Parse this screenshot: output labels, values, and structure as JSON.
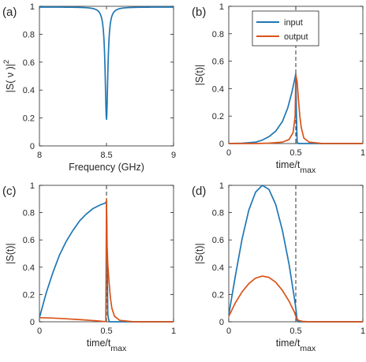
{
  "colors": {
    "input": "#1f77b4",
    "output": "#d95319",
    "marker": "#333333",
    "axes": "#262626"
  },
  "legend": {
    "entries": [
      "input",
      "output"
    ],
    "placement": "top-left",
    "panel": "b"
  },
  "chart_data": [
    {
      "panel": "(a)",
      "type": "line",
      "xlabel": "Frequency (GHz)",
      "ylabel": "|S( ν )|",
      "ylabel_sup": "2",
      "xlim": [
        8,
        9
      ],
      "ylim": [
        0,
        1
      ],
      "xticks": [
        "8",
        "8.5",
        "9"
      ],
      "yticks": [
        "0",
        "0.2",
        "0.4",
        "0.6",
        "0.8",
        "1"
      ],
      "series": [
        {
          "color_key": "input",
          "style": "lorentzian-dip",
          "center": 8.5,
          "min": 0.19,
          "baseline": 0.995,
          "halfwidth": 0.012
        }
      ]
    },
    {
      "panel": "(b)",
      "type": "line",
      "xlabel": "time/t",
      "xlabel_sub": "max",
      "ylabel": "|S(t)|",
      "xlim": [
        0,
        1
      ],
      "ylim": [
        0,
        1
      ],
      "xticks": [
        "0",
        "0.5",
        "1"
      ],
      "yticks": [
        "0",
        "0.2",
        "0.4",
        "0.6",
        "0.8",
        "1"
      ],
      "vline": 0.5,
      "series": [
        {
          "name": "input",
          "color_key": "input",
          "x": [
            0,
            0.1,
            0.2,
            0.25,
            0.3,
            0.35,
            0.4,
            0.44,
            0.47,
            0.49,
            0.5,
            0.505,
            0.51,
            0.52,
            0.6,
            1
          ],
          "y": [
            0,
            0.002,
            0.01,
            0.025,
            0.05,
            0.09,
            0.16,
            0.26,
            0.37,
            0.46,
            0.51,
            0.2,
            0.01,
            0,
            0,
            0
          ]
        },
        {
          "name": "output",
          "color_key": "output",
          "x": [
            0,
            0.2,
            0.3,
            0.4,
            0.45,
            0.48,
            0.495,
            0.5,
            0.51,
            0.52,
            0.53,
            0.54,
            0.56,
            0.6,
            0.7,
            1
          ],
          "y": [
            0,
            0,
            0.003,
            0.01,
            0.03,
            0.08,
            0.2,
            0.5,
            0.45,
            0.32,
            0.2,
            0.12,
            0.04,
            0.01,
            0,
            0
          ]
        }
      ]
    },
    {
      "panel": "(c)",
      "type": "line",
      "xlabel": "time/t",
      "xlabel_sub": "max",
      "ylabel": "|S(t)|",
      "xlim": [
        0,
        1
      ],
      "ylim": [
        0,
        1
      ],
      "xticks": [
        "0",
        "0.5",
        "1"
      ],
      "yticks": [
        "0",
        "0.2",
        "0.4",
        "0.6",
        "0.8",
        "1"
      ],
      "vline": 0.5,
      "series": [
        {
          "name": "input",
          "color_key": "input",
          "x": [
            0,
            0.05,
            0.1,
            0.15,
            0.2,
            0.25,
            0.3,
            0.35,
            0.4,
            0.45,
            0.49,
            0.5,
            0.505,
            0.51,
            0.52,
            0.6,
            1
          ],
          "y": [
            0.03,
            0.21,
            0.36,
            0.49,
            0.59,
            0.67,
            0.74,
            0.79,
            0.83,
            0.855,
            0.87,
            0.88,
            0.45,
            0.05,
            0,
            0,
            0
          ]
        },
        {
          "name": "output",
          "color_key": "output",
          "x": [
            0,
            0.1,
            0.2,
            0.3,
            0.4,
            0.45,
            0.48,
            0.495,
            0.5,
            0.505,
            0.51,
            0.52,
            0.53,
            0.54,
            0.56,
            0.6,
            0.7,
            1
          ],
          "y": [
            0.03,
            0.027,
            0.022,
            0.016,
            0.009,
            0.005,
            0.002,
            0.001,
            0.9,
            0.55,
            0.42,
            0.28,
            0.17,
            0.1,
            0.04,
            0.01,
            0,
            0
          ]
        }
      ]
    },
    {
      "panel": "(d)",
      "type": "line",
      "xlabel": "time/t",
      "xlabel_sub": "max",
      "ylabel": "|S(t)|",
      "xlim": [
        0,
        1
      ],
      "ylim": [
        0,
        1
      ],
      "xticks": [
        "0",
        "0.5",
        "1"
      ],
      "yticks": [
        "0",
        "0.2",
        "0.4",
        "0.6",
        "0.8",
        "1"
      ],
      "vline": 0.5,
      "series": [
        {
          "name": "input",
          "color_key": "input",
          "x": [
            0,
            0.05,
            0.1,
            0.15,
            0.2,
            0.25,
            0.3,
            0.35,
            0.4,
            0.45,
            0.49,
            0.5,
            0.51,
            0.52,
            1
          ],
          "y": [
            0.05,
            0.34,
            0.61,
            0.82,
            0.95,
            1.0,
            0.97,
            0.86,
            0.67,
            0.42,
            0.17,
            0.1,
            0.01,
            0,
            0
          ]
        },
        {
          "name": "output",
          "color_key": "output",
          "x": [
            0,
            0.05,
            0.1,
            0.15,
            0.2,
            0.25,
            0.3,
            0.35,
            0.4,
            0.45,
            0.49,
            0.5,
            0.51,
            0.52,
            0.55,
            0.6,
            1
          ],
          "y": [
            0.04,
            0.14,
            0.22,
            0.28,
            0.32,
            0.335,
            0.325,
            0.29,
            0.23,
            0.15,
            0.07,
            0.04,
            0.02,
            0.01,
            0.003,
            0,
            0
          ]
        }
      ]
    }
  ]
}
